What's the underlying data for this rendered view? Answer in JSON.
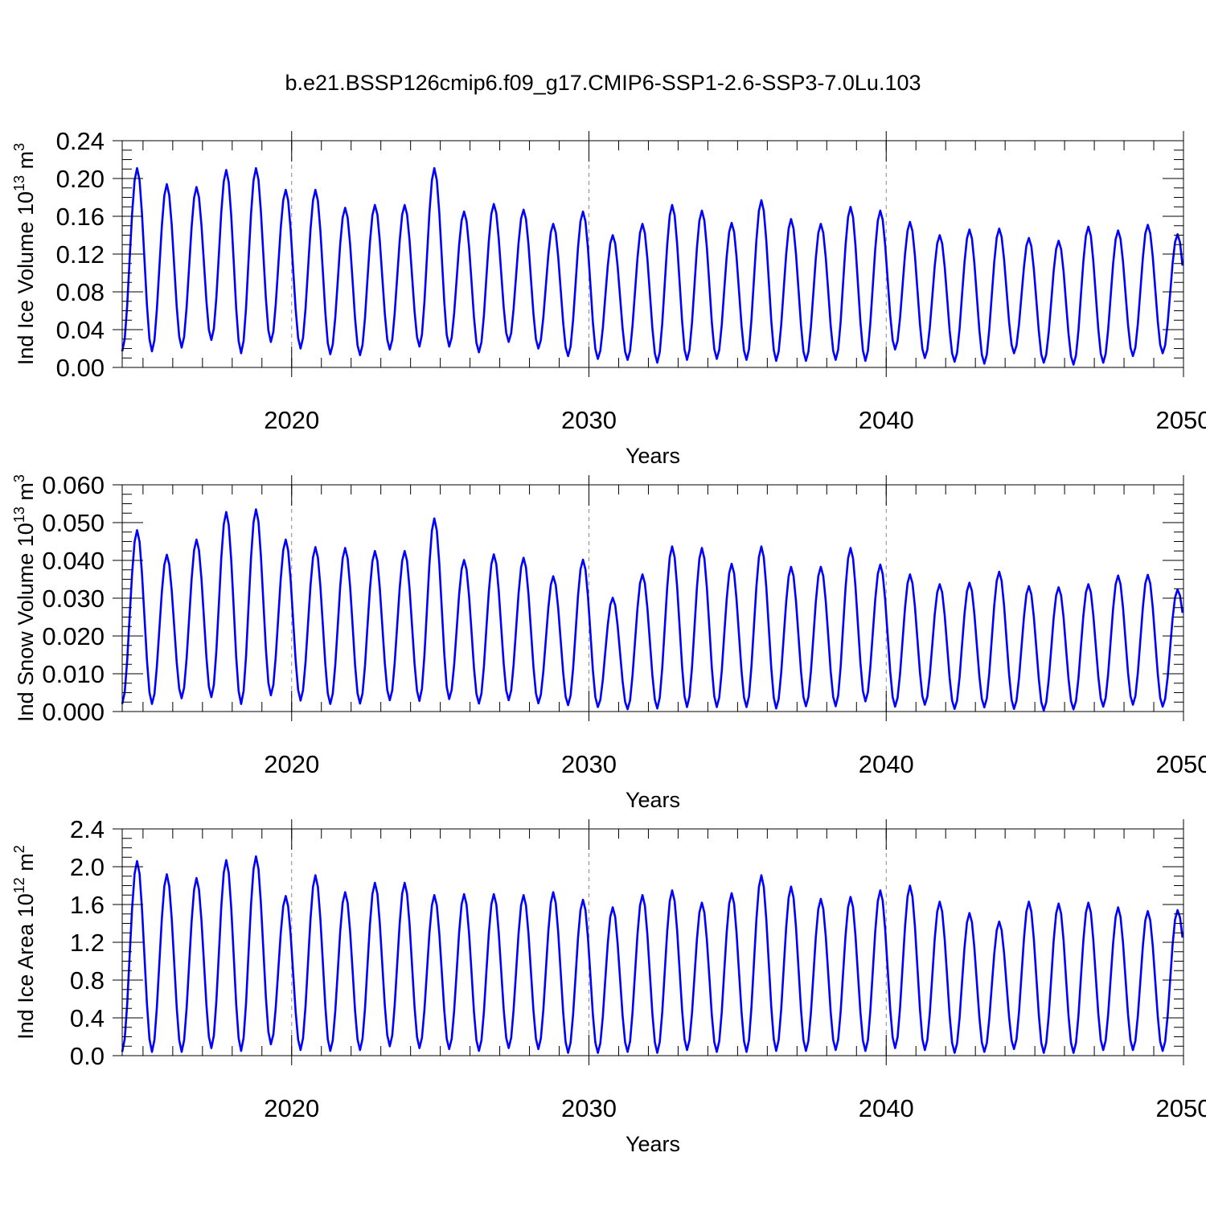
{
  "title": "b.e21.BSSP126cmip6.f09_g17.CMIP6-SSP1-2.6-SSP3-7.0Lu.103",
  "colors": {
    "line": "#0000ff",
    "axis": "#000000",
    "grid": "#888888"
  },
  "chart_data": [
    {
      "type": "line",
      "name": "ice-volume",
      "ylabel_main": "Ind Ice Volume 10",
      "ylabel_exp": "13",
      "ylabel_unit": " m",
      "ylabel_unit_exp": "3",
      "xlabel": "Years",
      "xlim": [
        2014.3,
        2050.0
      ],
      "ylim": [
        0.0,
        0.24
      ],
      "yticks": [
        0.0,
        0.04,
        0.08,
        0.12,
        0.16,
        0.2,
        0.24
      ],
      "ytick_labels": [
        "0.00",
        "0.04",
        "0.08",
        "0.12",
        "0.16",
        "0.20",
        "0.24"
      ],
      "xticks": [
        2020,
        2030,
        2040,
        2050
      ],
      "xtick_labels": [
        "2020",
        "2030",
        "2040",
        "2050"
      ],
      "vgrid": [
        2020,
        2030,
        2040
      ],
      "start": 2014.3,
      "peak_month": 6,
      "annual_max": [
        0.211,
        0.194,
        0.191,
        0.209,
        0.211,
        0.188,
        0.188,
        0.169,
        0.172,
        0.172,
        0.211,
        0.165,
        0.173,
        0.167,
        0.152,
        0.165,
        0.14,
        0.152,
        0.172,
        0.166,
        0.153,
        0.177,
        0.157,
        0.152,
        0.17,
        0.166,
        0.154,
        0.14,
        0.146,
        0.147,
        0.137,
        0.134,
        0.149,
        0.145,
        0.151,
        0.141
      ],
      "annual_min": [
        0.017,
        0.021,
        0.029,
        0.015,
        0.027,
        0.02,
        0.014,
        0.013,
        0.019,
        0.022,
        0.022,
        0.016,
        0.027,
        0.02,
        0.012,
        0.009,
        0.008,
        0.005,
        0.008,
        0.009,
        0.008,
        0.007,
        0.007,
        0.008,
        0.007,
        0.019,
        0.01,
        0.006,
        0.004,
        0.015,
        0.005,
        0.003,
        0.005,
        0.012,
        0.015,
        0.008
      ]
    },
    {
      "type": "line",
      "name": "snow-volume",
      "ylabel_main": "Ind Snow Volume 10",
      "ylabel_exp": "13",
      "ylabel_unit": " m",
      "ylabel_unit_exp": "3",
      "xlabel": "Years",
      "xlim": [
        2014.3,
        2050.0
      ],
      "ylim": [
        0.0,
        0.06
      ],
      "yticks": [
        0.0,
        0.01,
        0.02,
        0.03,
        0.04,
        0.05,
        0.06
      ],
      "ytick_labels": [
        "0.000",
        "0.010",
        "0.020",
        "0.030",
        "0.040",
        "0.050",
        "0.060"
      ],
      "xticks": [
        2020,
        2030,
        2040,
        2050
      ],
      "xtick_labels": [
        "2020",
        "2030",
        "2040",
        "2050"
      ],
      "vgrid": [
        2020,
        2030,
        2040
      ],
      "start": 2014.3,
      "peak_month": 6,
      "annual_max": [
        0.048,
        0.0415,
        0.0455,
        0.0528,
        0.0535,
        0.0455,
        0.0435,
        0.0433,
        0.0425,
        0.0425,
        0.0511,
        0.0401,
        0.0416,
        0.0407,
        0.0358,
        0.0402,
        0.0301,
        0.0363,
        0.0437,
        0.0433,
        0.0391,
        0.0437,
        0.0383,
        0.0383,
        0.0433,
        0.0389,
        0.0363,
        0.0337,
        0.0341,
        0.037,
        0.0332,
        0.0329,
        0.0337,
        0.036,
        0.0362,
        0.0323
      ],
      "annual_min": [
        0.002,
        0.0035,
        0.0038,
        0.002,
        0.0043,
        0.0029,
        0.002,
        0.0021,
        0.003,
        0.0028,
        0.0033,
        0.0021,
        0.003,
        0.0022,
        0.0017,
        0.0012,
        0.0006,
        0.0008,
        0.0012,
        0.0012,
        0.0012,
        0.0008,
        0.0014,
        0.0014,
        0.0027,
        0.0013,
        0.0018,
        0.0007,
        0.0011,
        0.0007,
        0.0003,
        0.0006,
        0.0013,
        0.0018,
        0.0013,
        0.0075
      ]
    },
    {
      "type": "line",
      "name": "ice-area",
      "ylabel_main": "Ind Ice Area 10",
      "ylabel_exp": "12",
      "ylabel_unit": " m",
      "ylabel_unit_exp": "2",
      "xlabel": "Years",
      "xlim": [
        2014.3,
        2050.0
      ],
      "ylim": [
        0.0,
        2.4
      ],
      "yticks": [
        0.0,
        0.4,
        0.8,
        1.2,
        1.6,
        2.0,
        2.4
      ],
      "ytick_labels": [
        "0.0",
        "0.4",
        "0.8",
        "1.2",
        "1.6",
        "2.0",
        "2.4"
      ],
      "xticks": [
        2020,
        2030,
        2040,
        2050
      ],
      "xtick_labels": [
        "2020",
        "2030",
        "2040",
        "2050"
      ],
      "vgrid": [
        2020,
        2030,
        2040
      ],
      "start": 2014.3,
      "peak_month": 6,
      "annual_max": [
        2.06,
        1.92,
        1.88,
        2.07,
        2.11,
        1.69,
        1.91,
        1.73,
        1.83,
        1.83,
        1.7,
        1.71,
        1.71,
        1.7,
        1.73,
        1.65,
        1.57,
        1.7,
        1.75,
        1.62,
        1.72,
        1.91,
        1.79,
        1.66,
        1.68,
        1.75,
        1.8,
        1.63,
        1.51,
        1.42,
        1.63,
        1.61,
        1.62,
        1.57,
        1.53,
        1.54
      ],
      "annual_min": [
        0.04,
        0.04,
        0.08,
        0.05,
        0.12,
        0.06,
        0.05,
        0.06,
        0.1,
        0.08,
        0.07,
        0.05,
        0.08,
        0.07,
        0.03,
        0.03,
        0.04,
        0.03,
        0.06,
        0.04,
        0.04,
        0.05,
        0.05,
        0.06,
        0.05,
        0.08,
        0.06,
        0.03,
        0.04,
        0.07,
        0.03,
        0.03,
        0.06,
        0.06,
        0.05,
        0.38
      ]
    }
  ]
}
